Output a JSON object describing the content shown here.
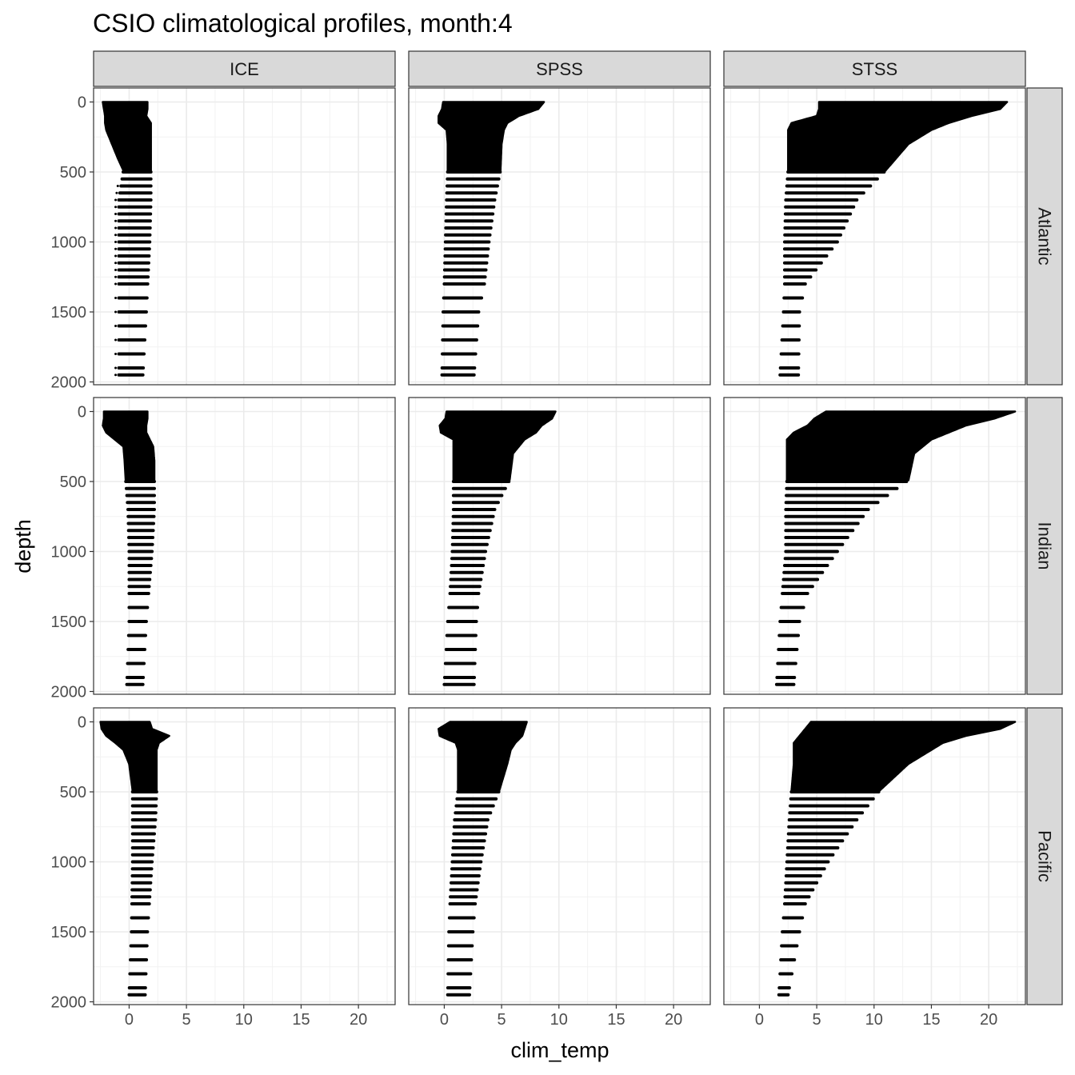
{
  "chart_data": {
    "type": "scatter",
    "title": "CSIO climatological profiles, month:4",
    "xlabel": "clim_temp",
    "ylabel": "depth",
    "columns": [
      "ICE",
      "SPSS",
      "STSS"
    ],
    "rows": [
      "Atlantic",
      "Indian",
      "Pacific"
    ],
    "x_ticks": [
      0,
      5,
      10,
      15,
      20
    ],
    "y_ticks": [
      0,
      500,
      1000,
      1500,
      2000
    ],
    "xlim": [
      -3.1,
      23.2
    ],
    "ylim": [
      2020,
      -100
    ],
    "y_reversed": true,
    "grid": true,
    "point_color": "#000000",
    "discrete_depths": [
      500,
      550,
      600,
      650,
      700,
      750,
      800,
      850,
      900,
      950,
      1000,
      1050,
      1100,
      1150,
      1200,
      1250,
      1300,
      1400,
      1500,
      1600,
      1700,
      1800,
      1900,
      1950
    ],
    "panels": [
      {
        "row": "Atlantic",
        "col": "ICE",
        "profile": [
          [
            0,
            -2.3,
            1.6
          ],
          [
            50,
            -2.2,
            1.6
          ],
          [
            100,
            -2.1,
            1.5
          ],
          [
            150,
            -2.1,
            1.9
          ],
          [
            200,
            -2.0,
            1.9
          ],
          [
            300,
            -1.5,
            1.9
          ],
          [
            400,
            -1.0,
            1.9
          ],
          [
            490,
            -0.5,
            1.9
          ],
          [
            700,
            -0.9,
            1.9
          ],
          [
            1000,
            -0.9,
            1.8
          ],
          [
            1500,
            -0.9,
            1.5
          ],
          [
            1950,
            -0.9,
            1.2
          ]
        ]
      },
      {
        "row": "Atlantic",
        "col": "SPSS",
        "profile": [
          [
            0,
            -0.1,
            8.7
          ],
          [
            50,
            -0.2,
            8.2
          ],
          [
            100,
            -0.5,
            6.5
          ],
          [
            150,
            -0.5,
            5.5
          ],
          [
            200,
            0.2,
            5.2
          ],
          [
            300,
            0.3,
            5.0
          ],
          [
            490,
            0.3,
            4.9
          ],
          [
            700,
            0.2,
            4.4
          ],
          [
            1000,
            0.1,
            3.9
          ],
          [
            1300,
            0.0,
            3.5
          ],
          [
            1500,
            -0.1,
            3.0
          ],
          [
            1950,
            -0.2,
            2.6
          ]
        ]
      },
      {
        "row": "Atlantic",
        "col": "STSS",
        "profile": [
          [
            0,
            5.2,
            21.6
          ],
          [
            50,
            5.2,
            21.0
          ],
          [
            100,
            5.0,
            18.5
          ],
          [
            150,
            2.8,
            16.5
          ],
          [
            200,
            2.5,
            15.0
          ],
          [
            300,
            2.5,
            13.0
          ],
          [
            490,
            2.5,
            11.0
          ],
          [
            700,
            2.3,
            8.5
          ],
          [
            1000,
            2.2,
            6.8
          ],
          [
            1300,
            2.2,
            4.0
          ],
          [
            1500,
            2.1,
            3.5
          ],
          [
            1950,
            1.8,
            3.4
          ]
        ]
      },
      {
        "row": "Indian",
        "col": "ICE",
        "profile": [
          [
            0,
            -2.2,
            1.6
          ],
          [
            50,
            -2.2,
            1.6
          ],
          [
            100,
            -2.3,
            1.5
          ],
          [
            150,
            -2.0,
            1.5
          ],
          [
            250,
            -0.5,
            2.1
          ],
          [
            350,
            -0.4,
            2.2
          ],
          [
            490,
            -0.3,
            2.2
          ],
          [
            700,
            -0.1,
            2.2
          ],
          [
            1000,
            0.0,
            2.0
          ],
          [
            1500,
            0.0,
            1.5
          ],
          [
            1950,
            -0.2,
            1.2
          ]
        ]
      },
      {
        "row": "Indian",
        "col": "SPSS",
        "profile": [
          [
            0,
            0.2,
            9.7
          ],
          [
            50,
            0.1,
            9.4
          ],
          [
            100,
            -0.4,
            8.5
          ],
          [
            150,
            -0.3,
            8.0
          ],
          [
            200,
            0.8,
            7.0
          ],
          [
            300,
            0.8,
            6.0
          ],
          [
            490,
            0.8,
            5.7
          ],
          [
            700,
            0.8,
            4.4
          ],
          [
            1000,
            0.7,
            3.6
          ],
          [
            1300,
            0.5,
            3.0
          ],
          [
            1500,
            0.3,
            2.8
          ],
          [
            1950,
            0.0,
            2.6
          ]
        ]
      },
      {
        "row": "Indian",
        "col": "STSS",
        "profile": [
          [
            0,
            5.8,
            22.3
          ],
          [
            50,
            4.8,
            20.5
          ],
          [
            100,
            4.2,
            18.0
          ],
          [
            150,
            3.0,
            16.5
          ],
          [
            200,
            2.4,
            15.0
          ],
          [
            300,
            2.4,
            13.5
          ],
          [
            490,
            2.4,
            13.0
          ],
          [
            700,
            2.3,
            9.5
          ],
          [
            1000,
            2.3,
            6.8
          ],
          [
            1300,
            2.0,
            4.2
          ],
          [
            1500,
            1.8,
            3.5
          ],
          [
            1950,
            1.5,
            3.0
          ]
        ]
      },
      {
        "row": "Pacific",
        "col": "ICE",
        "profile": [
          [
            0,
            -2.5,
            1.8
          ],
          [
            50,
            -2.4,
            2.0
          ],
          [
            100,
            -2.0,
            3.5
          ],
          [
            150,
            -1.2,
            2.6
          ],
          [
            200,
            -0.5,
            2.4
          ],
          [
            300,
            0.0,
            2.4
          ],
          [
            490,
            0.3,
            2.4
          ],
          [
            700,
            0.3,
            2.3
          ],
          [
            1000,
            0.3,
            2.0
          ],
          [
            1500,
            0.2,
            1.6
          ],
          [
            1950,
            0.0,
            1.4
          ]
        ]
      },
      {
        "row": "Pacific",
        "col": "SPSS",
        "profile": [
          [
            0,
            0.5,
            7.2
          ],
          [
            50,
            -0.5,
            7.0
          ],
          [
            100,
            -0.4,
            6.8
          ],
          [
            150,
            1.0,
            6.2
          ],
          [
            200,
            1.2,
            5.8
          ],
          [
            300,
            1.2,
            5.5
          ],
          [
            490,
            1.2,
            4.8
          ],
          [
            700,
            0.9,
            3.8
          ],
          [
            1000,
            0.7,
            3.2
          ],
          [
            1300,
            0.5,
            2.7
          ],
          [
            1500,
            0.4,
            2.5
          ],
          [
            1950,
            0.3,
            2.2
          ]
        ]
      },
      {
        "row": "Pacific",
        "col": "STSS",
        "profile": [
          [
            0,
            4.5,
            22.3
          ],
          [
            50,
            4.0,
            21.0
          ],
          [
            100,
            3.5,
            18.0
          ],
          [
            150,
            3.0,
            16.0
          ],
          [
            200,
            3.0,
            15.0
          ],
          [
            300,
            3.0,
            13.0
          ],
          [
            490,
            2.8,
            10.5
          ],
          [
            700,
            2.6,
            8.5
          ],
          [
            1000,
            2.4,
            6.0
          ],
          [
            1300,
            2.2,
            4.0
          ],
          [
            1500,
            2.0,
            3.5
          ],
          [
            1950,
            1.7,
            2.5
          ]
        ]
      }
    ]
  }
}
